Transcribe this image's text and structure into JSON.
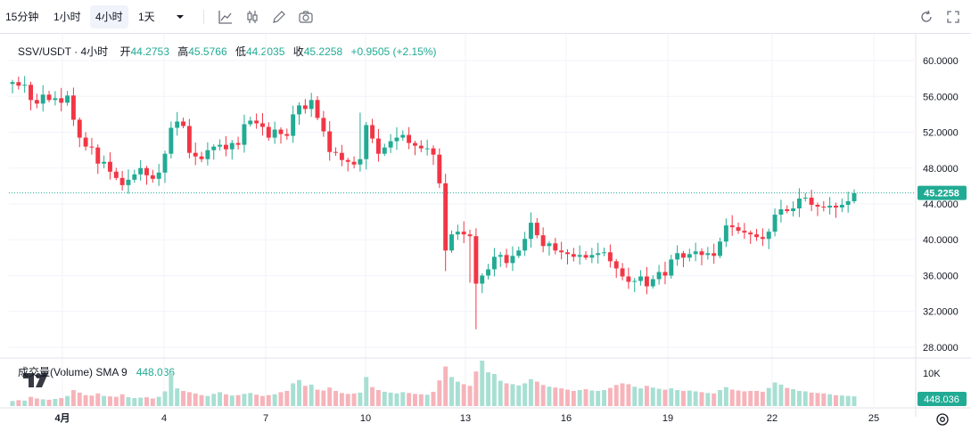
{
  "toolbar": {
    "timeframes": [
      {
        "label": "15分钟",
        "active": false
      },
      {
        "label": "1小时",
        "active": false
      },
      {
        "label": "4小时",
        "active": true
      },
      {
        "label": "1天",
        "active": false
      }
    ],
    "dropdown_icon": "chevron-down-icon",
    "tools": [
      "line-chart-icon",
      "candles-icon",
      "pencil-icon",
      "camera-icon"
    ],
    "right_tools": [
      "replay-icon",
      "fullscreen-icon"
    ]
  },
  "legend": {
    "symbol": "SSV/USDT · 4小时",
    "open_label": "开",
    "open": "44.2753",
    "high_label": "高",
    "high": "45.5766",
    "low_label": "低",
    "low": "44.2035",
    "close_label": "收",
    "close": "45.2258",
    "change": "+0.9505 (+2.15%)"
  },
  "volume_legend": {
    "label": "成交量(Volume) SMA 9",
    "value": "448.036"
  },
  "colors": {
    "up": "#22ab94",
    "down": "#f23645",
    "up_volume": "#a8dfd3",
    "down_volume": "#f6b4ba",
    "price_line": "#22ab94"
  },
  "chart_data": {
    "type": "candlestick",
    "x_tick_labels": [
      "4月",
      "4",
      "7",
      "10",
      "13",
      "16",
      "19",
      "22",
      "25"
    ],
    "y_ticks": [
      "60.0000",
      "56.0000",
      "52.0000",
      "48.0000",
      "44.0000",
      "40.0000",
      "36.0000",
      "32.0000",
      "28.0000"
    ],
    "ylim": [
      27,
      61
    ],
    "last_price": "45.2258",
    "last_price_value": 45.2258,
    "volume_tick": "10K",
    "volume_last": "448.036",
    "candles_close": [
      57.6,
      57.2,
      57.3,
      55.6,
      55.2,
      56.2,
      55.6,
      55.8,
      55.3,
      56.1,
      53.4,
      51.4,
      50.4,
      50.3,
      48.5,
      48.7,
      47.6,
      46.9,
      46.1,
      46.7,
      47.3,
      48.0,
      47.2,
      46.8,
      47.5,
      49.6,
      52.5,
      53.2,
      52.7,
      49.7,
      49.3,
      49.0,
      50.0,
      50.4,
      50.6,
      50.1,
      50.8,
      50.6,
      52.9,
      53.3,
      53.0,
      52.6,
      51.4,
      52.3,
      51.8,
      51.6,
      54.0,
      55.0,
      54.6,
      55.6,
      53.6,
      52.1,
      49.8,
      49.7,
      48.9,
      48.7,
      48.4,
      49.0,
      52.8,
      51.3,
      49.6,
      50.3,
      51.0,
      51.4,
      51.7,
      50.8,
      50.5,
      50.2,
      50.2,
      49.5,
      46.3,
      38.8,
      40.6,
      40.9,
      40.6,
      40.4,
      35.1,
      36.0,
      36.7,
      38.1,
      38.3,
      37.4,
      38.2,
      38.8,
      40.1,
      41.9,
      40.5,
      39.3,
      39.6,
      38.8,
      38.6,
      38.4,
      38.1,
      38.3,
      38.0,
      38.3,
      38.5,
      38.6,
      37.6,
      36.8,
      35.9,
      35.3,
      35.4,
      35.9,
      34.8,
      35.6,
      36.4,
      36.0,
      37.8,
      38.5,
      38.0,
      38.4,
      38.7,
      38.3,
      38.5,
      38.2,
      39.8,
      41.6,
      41.4,
      41.0,
      40.8,
      40.6,
      40.3,
      40.1,
      40.9,
      42.8,
      43.4,
      43.2,
      43.5,
      44.6,
      44.7,
      43.9,
      43.7,
      43.6,
      43.8,
      43.6,
      43.9,
      44.3,
      45.2
    ],
    "first_open": 57.4,
    "volume_values": [
      1200,
      1400,
      1300,
      2200,
      1800,
      1600,
      1500,
      1700,
      1900,
      2400,
      3800,
      3200,
      2600,
      2500,
      3000,
      2400,
      2300,
      2200,
      2800,
      2100,
      1900,
      2000,
      2100,
      1800,
      2200,
      3500,
      7800,
      4200,
      3600,
      3300,
      3000,
      2600,
      2400,
      2900,
      3300,
      2800,
      2500,
      2600,
      2900,
      3100,
      2700,
      2400,
      2600,
      2800,
      3300,
      3600,
      5400,
      6200,
      4800,
      5100,
      3900,
      3700,
      4400,
      3600,
      3100,
      2900,
      3000,
      3200,
      6900,
      4500,
      3800,
      3400,
      3200,
      3000,
      3300,
      3100,
      2900,
      2800,
      2700,
      3400,
      6100,
      9400,
      6900,
      5800,
      5200,
      4800,
      8200,
      10800,
      8000,
      7600,
      6000,
      5400,
      5200,
      4900,
      5400,
      6400,
      5800,
      5000,
      4600,
      4400,
      4200,
      3900,
      3600,
      3800,
      4000,
      3700,
      3600,
      3800,
      4300,
      5000,
      5400,
      5200,
      4600,
      4200,
      4800,
      4400,
      4100,
      3900,
      4200,
      3800,
      3600,
      3700,
      3500,
      3300,
      3100,
      3000,
      3800,
      4500,
      3900,
      3700,
      3500,
      3600,
      3600,
      3400,
      4300,
      5600,
      5100,
      4300,
      4000,
      3600,
      3500,
      3200,
      3100,
      3000,
      2800,
      2600,
      2500,
      2400,
      2300
    ]
  }
}
